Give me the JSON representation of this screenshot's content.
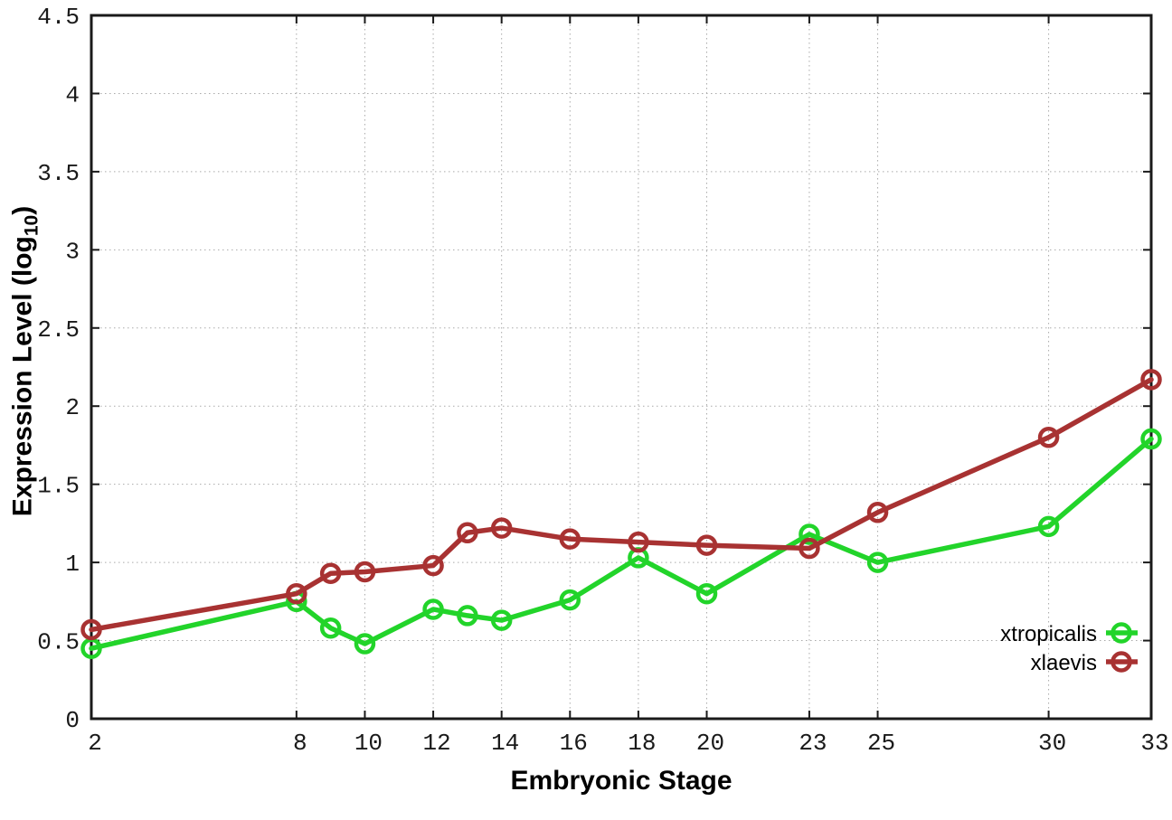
{
  "figure": {
    "xlabel": "Embryonic Stage",
    "ylabel": {
      "prefix": "Expression Level (log",
      "sub": "10",
      "suffix": ")"
    },
    "background_color": "#ffffff",
    "border_color": "#1a1a1a",
    "grid_color": "#aaaaaa",
    "tick_label_color": "#1a1a1a"
  },
  "chart_data": {
    "type": "line",
    "title": "",
    "xlabel": "Embryonic Stage",
    "ylabel": "Expression Level (log10)",
    "x": [
      2,
      8,
      9,
      10,
      12,
      13,
      14,
      16,
      18,
      20,
      23,
      25,
      30,
      33
    ],
    "xticks": [
      2,
      8,
      10,
      12,
      14,
      16,
      18,
      20,
      23,
      25,
      30,
      33
    ],
    "yticks": [
      0,
      0.5,
      1,
      1.5,
      2,
      2.5,
      3,
      3.5,
      4,
      4.5
    ],
    "xlim": [
      2,
      33
    ],
    "ylim": [
      0,
      4.5
    ],
    "grid": true,
    "marker": "open-circle",
    "legend_position": "inside-bottom-right",
    "series": [
      {
        "name": "xtropicalis",
        "color": "#22d42a",
        "values": [
          0.45,
          0.75,
          0.58,
          0.48,
          0.7,
          0.66,
          0.63,
          0.76,
          1.03,
          0.8,
          1.18,
          1.0,
          1.23,
          1.79
        ]
      },
      {
        "name": "xlaevis",
        "color": "#a83232",
        "values": [
          0.57,
          0.8,
          0.93,
          0.94,
          0.98,
          1.19,
          1.22,
          1.15,
          1.13,
          1.11,
          1.09,
          1.32,
          1.8,
          2.17
        ]
      }
    ]
  }
}
